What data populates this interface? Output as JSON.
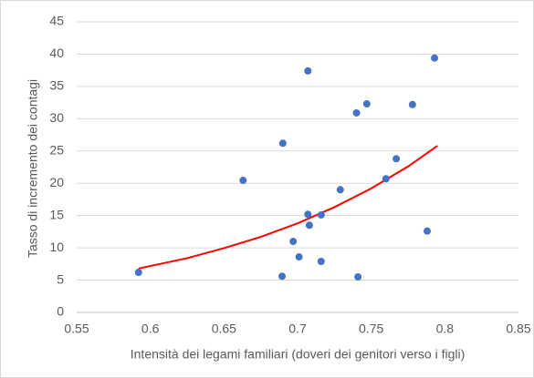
{
  "chart_data": {
    "type": "scatter",
    "x_label": "Intensità dei legami familiari (doveri dei genitori verso i figli)",
    "y_label": "Tasso di incremento dei contagi",
    "x": [
      0.592,
      0.663,
      0.69,
      0.6895,
      0.707,
      0.697,
      0.701,
      0.707,
      0.708,
      0.716,
      0.716,
      0.729,
      0.74,
      0.747,
      0.741,
      0.76,
      0.767,
      0.778,
      0.788,
      0.793
    ],
    "values": [
      6.2,
      20.45,
      26.2,
      5.6,
      37.4,
      11.0,
      8.6,
      15.2,
      13.5,
      7.9,
      15.1,
      19.0,
      30.9,
      32.3,
      5.5,
      20.7,
      23.8,
      32.2,
      12.6,
      39.4
    ],
    "color": "#4472c4",
    "trendline": {
      "x": [
        0.592,
        0.625,
        0.65,
        0.675,
        0.7,
        0.725,
        0.75,
        0.775,
        0.795
      ],
      "values": [
        6.8,
        8.4,
        9.95,
        11.7,
        13.8,
        16.3,
        19.2,
        22.6,
        25.8
      ],
      "color": "#ff0000"
    },
    "xlim": [
      0.55,
      0.85
    ],
    "xticks": [
      0.55,
      0.6,
      0.65,
      0.7,
      0.75,
      0.8,
      0.85
    ],
    "ylim": [
      0,
      45
    ],
    "yticks": [
      0,
      5,
      10,
      15,
      20,
      25,
      30,
      35,
      40,
      45
    ],
    "grid": true
  }
}
